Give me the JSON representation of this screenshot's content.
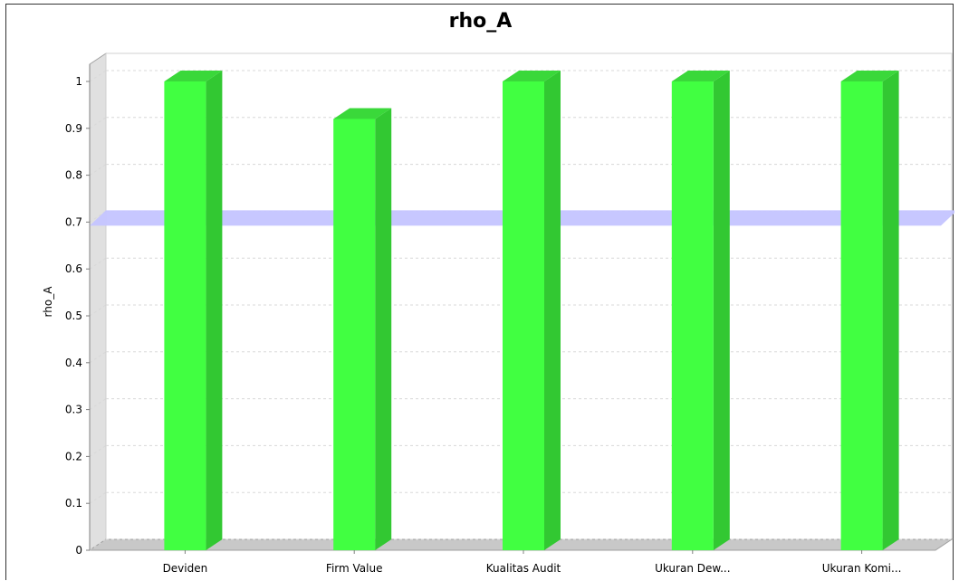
{
  "chart_data": {
    "type": "bar",
    "title": "rho_A",
    "xlabel": "",
    "ylabel": "rho_A",
    "categories": [
      "Deviden",
      "Firm Value",
      "Kualitas Audit",
      "Ukuran Dew...",
      "Ukuran Komi..."
    ],
    "values": [
      1.0,
      0.92,
      1.0,
      1.0,
      1.0
    ],
    "ylim": [
      0,
      1.05
    ],
    "yticks": [
      "0",
      "0.1",
      "0.2",
      "0.3",
      "0.4",
      "0.5",
      "0.6",
      "0.7",
      "0.8",
      "0.9",
      "1"
    ],
    "reference_line": 0.7,
    "grid": true,
    "colors": {
      "bar_front": "#41ff41",
      "bar_side": "#32c832",
      "bar_top": "#3ad83a",
      "reference_band": "#c4c4ff",
      "floor": "#c8c8c8",
      "wall": "#e0e0e0"
    }
  }
}
